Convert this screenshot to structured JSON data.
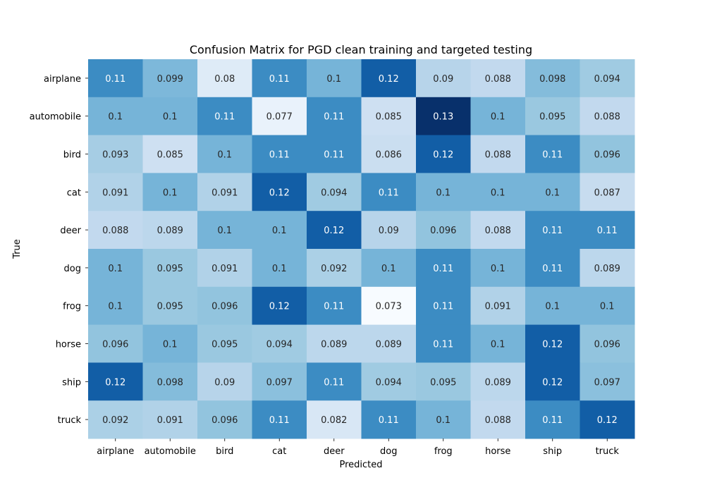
{
  "chart_data": {
    "type": "heatmap",
    "title": "Confusion Matrix for PGD clean training and targeted testing",
    "xlabel": "Predicted",
    "ylabel": "True",
    "x_categories": [
      "airplane",
      "automobile",
      "bird",
      "cat",
      "deer",
      "dog",
      "frog",
      "horse",
      "ship",
      "truck"
    ],
    "y_categories": [
      "airplane",
      "automobile",
      "bird",
      "cat",
      "deer",
      "dog",
      "frog",
      "horse",
      "ship",
      "truck"
    ],
    "values": [
      [
        0.11,
        0.099,
        0.08,
        0.11,
        0.1,
        0.12,
        0.09,
        0.088,
        0.098,
        0.094
      ],
      [
        0.1,
        0.1,
        0.11,
        0.077,
        0.11,
        0.085,
        0.13,
        0.1,
        0.095,
        0.088
      ],
      [
        0.093,
        0.085,
        0.1,
        0.11,
        0.11,
        0.086,
        0.12,
        0.088,
        0.11,
        0.096
      ],
      [
        0.091,
        0.1,
        0.091,
        0.12,
        0.094,
        0.11,
        0.1,
        0.1,
        0.1,
        0.087
      ],
      [
        0.088,
        0.089,
        0.1,
        0.1,
        0.12,
        0.09,
        0.096,
        0.088,
        0.11,
        0.11
      ],
      [
        0.1,
        0.095,
        0.091,
        0.1,
        0.092,
        0.1,
        0.11,
        0.1,
        0.11,
        0.089
      ],
      [
        0.1,
        0.095,
        0.096,
        0.12,
        0.11,
        0.073,
        0.11,
        0.091,
        0.1,
        0.1
      ],
      [
        0.096,
        0.1,
        0.095,
        0.094,
        0.089,
        0.089,
        0.11,
        0.1,
        0.12,
        0.096
      ],
      [
        0.12,
        0.098,
        0.09,
        0.097,
        0.11,
        0.094,
        0.095,
        0.089,
        0.12,
        0.097
      ],
      [
        0.092,
        0.091,
        0.096,
        0.11,
        0.082,
        0.11,
        0.1,
        0.088,
        0.11,
        0.12
      ]
    ],
    "colormap": "Blues",
    "colorbar": false,
    "grid": false
  }
}
